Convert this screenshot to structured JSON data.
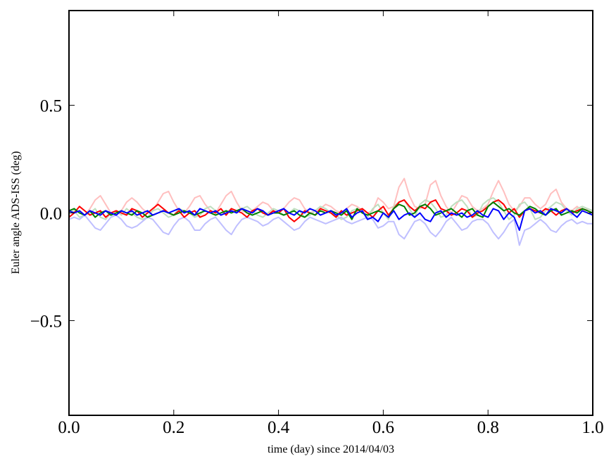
{
  "chart_data": {
    "type": "line",
    "title": "",
    "xlabel": "time (day) since 2014/04/03",
    "ylabel": "Euler angle ADS-ISS (deg)",
    "xlim": [
      0,
      1
    ],
    "ylim": [
      -0.94,
      0.94
    ],
    "grid": false,
    "legend": "none",
    "xticks": [
      0.0,
      0.2,
      0.4,
      0.6,
      0.8,
      1.0
    ],
    "xtick_labels": [
      "0.0",
      "0.2",
      "0.4",
      "0.6",
      "0.8",
      "1.0"
    ],
    "yticks": [
      0.5,
      0.0,
      -0.5
    ],
    "ytick_labels": [
      "0.5",
      "0.0",
      "−0.5"
    ],
    "x": [
      0.0,
      0.01,
      0.02,
      0.03,
      0.04,
      0.05,
      0.06,
      0.07,
      0.08,
      0.09,
      0.1,
      0.11,
      0.12,
      0.13,
      0.14,
      0.15,
      0.16,
      0.17,
      0.18,
      0.19,
      0.2,
      0.21,
      0.22,
      0.23,
      0.24,
      0.25,
      0.26,
      0.27,
      0.28,
      0.29,
      0.3,
      0.31,
      0.32,
      0.33,
      0.34,
      0.35,
      0.36,
      0.37,
      0.38,
      0.39,
      0.4,
      0.41,
      0.42,
      0.43,
      0.44,
      0.45,
      0.46,
      0.47,
      0.48,
      0.49,
      0.5,
      0.51,
      0.52,
      0.53,
      0.54,
      0.55,
      0.56,
      0.57,
      0.58,
      0.59,
      0.6,
      0.61,
      0.62,
      0.63,
      0.64,
      0.65,
      0.66,
      0.67,
      0.68,
      0.69,
      0.7,
      0.71,
      0.72,
      0.73,
      0.74,
      0.75,
      0.76,
      0.77,
      0.78,
      0.79,
      0.8,
      0.81,
      0.82,
      0.83,
      0.84,
      0.85,
      0.86,
      0.87,
      0.88,
      0.89,
      0.9,
      0.91,
      0.92,
      0.93,
      0.94,
      0.95,
      0.96,
      0.97,
      0.98,
      0.99,
      1.0
    ],
    "series": [
      {
        "color": "#ffbfbf",
        "values": [
          0.01,
          0.0,
          0.01,
          -0.01,
          0.02,
          0.06,
          0.08,
          0.04,
          0.0,
          -0.01,
          0.01,
          0.05,
          0.07,
          0.05,
          0.02,
          0.0,
          0.01,
          0.05,
          0.09,
          0.1,
          0.05,
          0.01,
          0.0,
          0.03,
          0.07,
          0.08,
          0.04,
          0.01,
          0.0,
          0.04,
          0.08,
          0.1,
          0.05,
          0.01,
          0.0,
          0.01,
          0.03,
          0.05,
          0.04,
          0.01,
          0.0,
          0.02,
          0.05,
          0.07,
          0.06,
          0.02,
          0.0,
          0.01,
          0.02,
          0.04,
          0.03,
          0.01,
          0.0,
          0.02,
          0.04,
          0.03,
          0.01,
          0.0,
          0.01,
          0.07,
          0.05,
          0.02,
          0.03,
          0.12,
          0.16,
          0.08,
          0.03,
          0.02,
          0.04,
          0.13,
          0.15,
          0.08,
          0.03,
          0.0,
          0.04,
          0.08,
          0.07,
          0.03,
          0.01,
          0.02,
          0.04,
          0.1,
          0.15,
          0.1,
          0.04,
          0.01,
          0.03,
          0.07,
          0.07,
          0.04,
          0.02,
          0.04,
          0.09,
          0.11,
          0.05,
          0.02,
          0.01,
          0.03,
          0.01,
          0.02,
          0.01
        ]
      },
      {
        "color": "#bfdfbf",
        "values": [
          0.0,
          0.01,
          -0.02,
          -0.01,
          0.0,
          0.02,
          -0.02,
          -0.03,
          0.0,
          0.01,
          -0.01,
          0.02,
          0.0,
          -0.02,
          -0.03,
          -0.02,
          0.01,
          0.02,
          0.0,
          -0.02,
          -0.01,
          0.02,
          0.01,
          0.0,
          -0.02,
          -0.01,
          0.02,
          0.03,
          0.01,
          -0.01,
          0.0,
          0.02,
          0.01,
          0.02,
          0.03,
          0.01,
          -0.01,
          -0.02,
          0.0,
          0.02,
          0.01,
          -0.01,
          0.0,
          0.02,
          0.01,
          -0.02,
          -0.01,
          0.01,
          0.03,
          0.02,
          0.0,
          -0.01,
          -0.03,
          -0.02,
          0.01,
          0.02,
          0.0,
          -0.02,
          0.02,
          0.04,
          0.0,
          -0.03,
          0.03,
          0.05,
          0.06,
          0.02,
          -0.02,
          0.04,
          0.06,
          0.05,
          0.02,
          -0.02,
          -0.01,
          0.03,
          0.05,
          0.06,
          0.03,
          -0.02,
          -0.01,
          0.04,
          0.06,
          0.07,
          0.05,
          0.01,
          -0.03,
          -0.01,
          0.04,
          0.05,
          0.02,
          -0.03,
          -0.02,
          0.01,
          0.03,
          0.05,
          0.04,
          0.01,
          -0.01,
          0.02,
          0.03,
          0.02,
          0.01
        ]
      },
      {
        "color": "#bfbfff",
        "values": [
          -0.03,
          -0.02,
          -0.03,
          -0.01,
          -0.04,
          -0.07,
          -0.08,
          -0.05,
          -0.02,
          -0.01,
          -0.03,
          -0.06,
          -0.07,
          -0.06,
          -0.04,
          -0.02,
          -0.03,
          -0.06,
          -0.09,
          -0.1,
          -0.06,
          -0.03,
          -0.02,
          -0.04,
          -0.08,
          -0.08,
          -0.05,
          -0.03,
          -0.02,
          -0.05,
          -0.08,
          -0.1,
          -0.06,
          -0.03,
          -0.02,
          -0.03,
          -0.04,
          -0.06,
          -0.05,
          -0.03,
          -0.02,
          -0.04,
          -0.06,
          -0.08,
          -0.07,
          -0.04,
          -0.02,
          -0.03,
          -0.04,
          -0.05,
          -0.04,
          -0.03,
          -0.02,
          -0.04,
          -0.05,
          -0.04,
          -0.03,
          -0.02,
          -0.03,
          -0.07,
          -0.06,
          -0.04,
          -0.04,
          -0.1,
          -0.12,
          -0.08,
          -0.04,
          -0.03,
          -0.05,
          -0.09,
          -0.11,
          -0.08,
          -0.04,
          -0.02,
          -0.05,
          -0.08,
          -0.07,
          -0.04,
          -0.03,
          -0.03,
          -0.05,
          -0.09,
          -0.12,
          -0.09,
          -0.05,
          -0.03,
          -0.15,
          -0.08,
          -0.07,
          -0.05,
          -0.03,
          -0.05,
          -0.08,
          -0.09,
          -0.06,
          -0.04,
          -0.03,
          -0.05,
          -0.04,
          -0.05,
          -0.05
        ]
      },
      {
        "color": "#ff0000",
        "values": [
          -0.02,
          0.0,
          0.03,
          0.01,
          -0.01,
          0.0,
          0.01,
          -0.02,
          0.0,
          0.01,
          0.0,
          -0.01,
          0.02,
          0.01,
          -0.02,
          0.0,
          0.02,
          0.04,
          0.02,
          0.0,
          -0.01,
          0.01,
          -0.02,
          0.0,
          0.01,
          -0.02,
          -0.01,
          0.01,
          0.0,
          0.02,
          -0.01,
          0.02,
          0.01,
          0.0,
          -0.02,
          0.01,
          0.02,
          0.0,
          -0.01,
          0.01,
          0.0,
          0.02,
          -0.02,
          -0.04,
          -0.02,
          0.01,
          0.0,
          -0.01,
          0.02,
          0.01,
          0.0,
          -0.02,
          0.01,
          -0.01,
          0.0,
          0.01,
          0.02,
          0.0,
          -0.02,
          0.01,
          0.03,
          -0.01,
          0.02,
          0.05,
          0.06,
          0.03,
          0.01,
          0.03,
          0.02,
          0.05,
          0.06,
          0.02,
          0.01,
          -0.01,
          0.0,
          0.02,
          0.01,
          -0.02,
          0.0,
          0.01,
          0.03,
          0.05,
          0.06,
          0.04,
          0.0,
          0.02,
          -0.02,
          0.01,
          0.02,
          0.01,
          0.0,
          0.02,
          0.01,
          -0.01,
          0.01,
          0.02,
          0.0,
          0.01,
          0.02,
          0.01,
          0.0
        ]
      },
      {
        "color": "#008000",
        "values": [
          0.01,
          0.02,
          0.0,
          -0.01,
          0.01,
          -0.02,
          0.0,
          0.01,
          -0.01,
          0.0,
          0.01,
          0.0,
          -0.01,
          0.01,
          0.0,
          -0.02,
          -0.01,
          0.0,
          0.01,
          0.0,
          -0.01,
          0.0,
          0.01,
          0.0,
          -0.01,
          0.0,
          0.01,
          0.0,
          -0.01,
          0.0,
          0.01,
          0.0,
          0.01,
          0.02,
          0.0,
          -0.01,
          0.0,
          0.01,
          -0.01,
          0.0,
          0.0,
          -0.01,
          0.0,
          0.01,
          -0.01,
          -0.02,
          0.0,
          -0.01,
          0.01,
          0.0,
          0.01,
          0.0,
          -0.01,
          0.01,
          -0.03,
          0.02,
          0.0,
          -0.01,
          0.0,
          0.01,
          0.0,
          -0.02,
          0.02,
          0.04,
          0.03,
          -0.01,
          0.0,
          0.03,
          0.04,
          0.02,
          -0.01,
          0.0,
          0.01,
          0.02,
          0.0,
          -0.02,
          0.01,
          0.02,
          -0.01,
          -0.02,
          0.03,
          0.05,
          0.03,
          0.01,
          0.02,
          0.0,
          -0.01,
          0.01,
          0.03,
          0.02,
          0.0,
          -0.01,
          0.01,
          0.02,
          -0.01,
          0.0,
          0.01,
          0.0,
          0.02,
          0.01,
          0.0
        ]
      },
      {
        "color": "#0000ff",
        "values": [
          0.01,
          0.0,
          0.01,
          -0.01,
          0.01,
          0.0,
          -0.01,
          0.01,
          0.0,
          -0.01,
          0.01,
          0.0,
          0.01,
          -0.01,
          0.0,
          0.01,
          -0.01,
          0.0,
          0.01,
          0.0,
          0.01,
          0.02,
          0.0,
          0.01,
          -0.01,
          0.02,
          0.01,
          0.0,
          0.01,
          -0.01,
          0.0,
          0.01,
          0.0,
          0.02,
          0.01,
          0.0,
          0.02,
          0.01,
          -0.01,
          0.0,
          0.01,
          0.02,
          0.0,
          -0.01,
          0.01,
          0.0,
          0.02,
          0.01,
          -0.01,
          0.0,
          0.01,
          -0.01,
          0.0,
          0.02,
          -0.02,
          0.0,
          0.01,
          -0.03,
          -0.02,
          -0.04,
          0.0,
          -0.02,
          0.01,
          -0.03,
          -0.01,
          0.0,
          -0.02,
          0.0,
          -0.03,
          -0.04,
          0.0,
          0.01,
          -0.02,
          0.0,
          -0.01,
          0.0,
          -0.02,
          -0.01,
          0.01,
          -0.01,
          -0.02,
          0.02,
          0.01,
          -0.03,
          0.0,
          -0.02,
          -0.08,
          0.01,
          0.02,
          0.0,
          0.01,
          -0.01,
          0.02,
          0.01,
          0.0,
          0.02,
          0.0,
          -0.02,
          0.01,
          0.0,
          -0.01
        ]
      }
    ]
  }
}
